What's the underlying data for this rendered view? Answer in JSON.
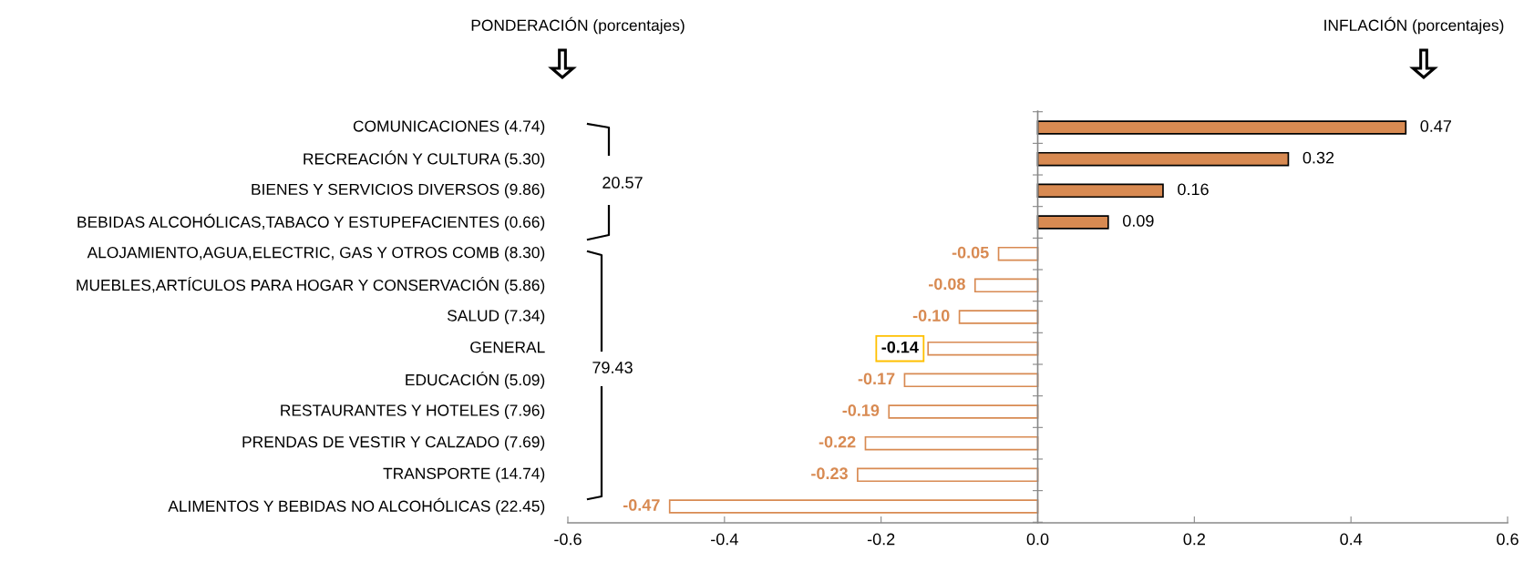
{
  "chart_data": {
    "type": "bar",
    "orientation": "horizontal",
    "categories": [
      "COMUNICACIONES (4.74)",
      "RECREACIÓN Y CULTURA (5.30)",
      "BIENES Y SERVICIOS DIVERSOS (9.86)",
      "BEBIDAS ALCOHÓLICAS,TABACO Y ESTUPEFACIENTES (0.66)",
      "ALOJAMIENTO,AGUA,ELECTRIC, GAS Y OTROS COMB (8.30)",
      "MUEBLES,ARTÍCULOS PARA HOGAR Y CONSERVACIÓN (5.86)",
      "SALUD (7.34)",
      "GENERAL",
      "EDUCACIÓN (5.09)",
      "RESTAURANTES Y HOTELES (7.96)",
      "PRENDAS DE VESTIR Y CALZADO (7.69)",
      "TRANSPORTE (14.74)",
      "ALIMENTOS Y BEBIDAS NO ALCOHÓLICAS (22.45)"
    ],
    "values": [
      0.47,
      0.32,
      0.16,
      0.09,
      -0.05,
      -0.08,
      -0.1,
      -0.14,
      -0.17,
      -0.19,
      -0.22,
      -0.23,
      -0.47
    ],
    "colors": [
      "#d88a52",
      "#d88a52",
      "#d88a52",
      "#d88a52",
      "#d88a52",
      "#d88a52",
      "#d88a52",
      "#d88a52",
      "#d88a52",
      "#d88a52",
      "#d88a52",
      "#d88a52",
      "#d88a52"
    ],
    "value_labels": [
      "0.47",
      "0.32",
      "0.16",
      "0.09",
      "-0.05",
      "-0.08",
      "-0.10",
      null,
      "-0.17",
      "-0.19",
      "-0.22",
      "-0.23",
      "-0.47"
    ],
    "xlim": [
      -0.6,
      0.6
    ],
    "xticks": [
      -0.6,
      -0.4,
      -0.2,
      {
        "value": 0,
        "label": "0.0"
      },
      0.2,
      0.4,
      0.6
    ],
    "legend": false,
    "annotations": [
      "PONDERACIÓN (porcentajes)",
      "INFLACIÓN (porcentajes)",
      "20.57",
      "79.43",
      {
        "text": "-0.14",
        "x": -0.14,
        "y": "GENERAL"
      }
    ]
  }
}
